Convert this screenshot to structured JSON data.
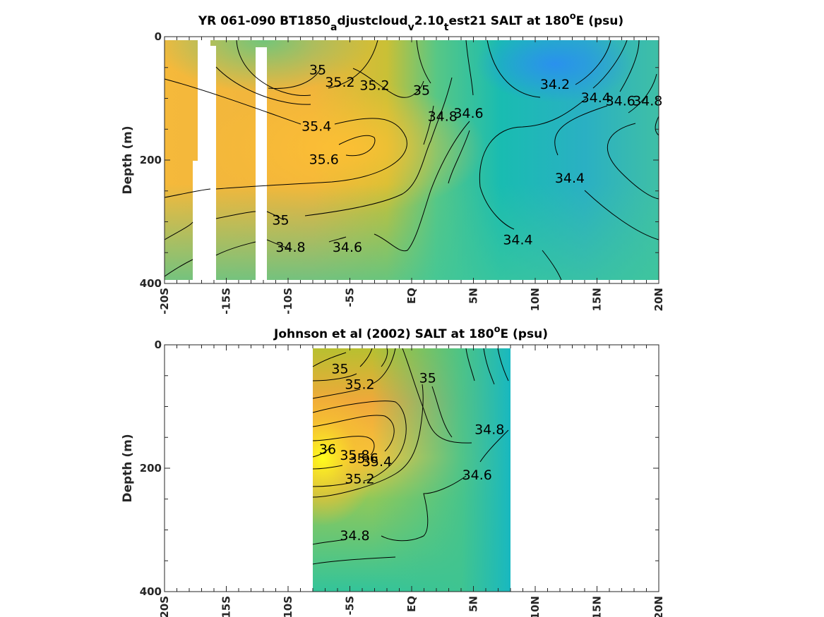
{
  "chart_data": [
    {
      "type": "heatmap",
      "title_parts": [
        "YR 061-090 BT1850",
        "a",
        "djustcloud",
        "v",
        "2.10",
        "t",
        "est21 SALT at 180",
        "o",
        "E (psu)"
      ],
      "ylabel": "Depth (m)",
      "xlim": [
        -20,
        20
      ],
      "ylim": [
        0,
        400
      ],
      "y_reversed": true,
      "x_ticks": [
        -20,
        -15,
        -10,
        -5,
        0,
        5,
        10,
        15,
        20
      ],
      "x_tick_labels": [
        "-20S",
        "-15S",
        "-10S",
        "-5S",
        "EQ",
        "5N",
        "10N",
        "15N",
        "20N"
      ],
      "y_ticks": [
        0,
        200,
        400
      ],
      "y_tick_labels": [
        "0",
        "200",
        "400"
      ],
      "contour_labels": [
        {
          "text": "35",
          "x": -7.6,
          "y": 55
        },
        {
          "text": "35.2",
          "x": -5.8,
          "y": 75
        },
        {
          "text": "35.2",
          "x": -3.0,
          "y": 80
        },
        {
          "text": "35",
          "x": 0.8,
          "y": 88
        },
        {
          "text": "34.8",
          "x": 2.5,
          "y": 130
        },
        {
          "text": "34.6",
          "x": 4.6,
          "y": 125
        },
        {
          "text": "34.2",
          "x": 11.6,
          "y": 78
        },
        {
          "text": "34.4",
          "x": 14.9,
          "y": 100
        },
        {
          "text": "34.6",
          "x": 16.9,
          "y": 105
        },
        {
          "text": "34.8",
          "x": 19.1,
          "y": 105
        },
        {
          "text": "35.4",
          "x": -7.7,
          "y": 146
        },
        {
          "text": "35.6",
          "x": -7.1,
          "y": 200
        },
        {
          "text": "34.4",
          "x": 12.8,
          "y": 230
        },
        {
          "text": "35",
          "x": -10.6,
          "y": 298
        },
        {
          "text": "34.8",
          "x": -9.8,
          "y": 342
        },
        {
          "text": "34.6",
          "x": -5.2,
          "y": 342
        },
        {
          "text": "34.4",
          "x": 8.6,
          "y": 330
        }
      ]
    },
    {
      "type": "heatmap",
      "title_parts": [
        "Johnson et al (2002) SALT at 180",
        "o",
        "E (psu)"
      ],
      "ylabel": "Depth (m)",
      "xlim": [
        -20,
        20
      ],
      "ylim": [
        0,
        400
      ],
      "y_reversed": true,
      "data_x_range": [
        -8,
        8
      ],
      "x_ticks": [
        -20,
        -15,
        -10,
        -5,
        0,
        5,
        10,
        15,
        20
      ],
      "x_tick_labels": [
        "-20S",
        "-15S",
        "-10S",
        "-5S",
        "EQ",
        "5N",
        "10N",
        "15N",
        "20N"
      ],
      "y_ticks": [
        0,
        200,
        400
      ],
      "y_tick_labels": [
        "0",
        "200",
        "400"
      ],
      "contour_labels": [
        {
          "text": "35",
          "x": -5.8,
          "y": 40
        },
        {
          "text": "35.2",
          "x": -4.2,
          "y": 65
        },
        {
          "text": "35",
          "x": 1.3,
          "y": 55
        },
        {
          "text": "34.8",
          "x": 6.3,
          "y": 138
        },
        {
          "text": "36",
          "x": -6.8,
          "y": 170
        },
        {
          "text": "35.8",
          "x": -4.6,
          "y": 180
        },
        {
          "text": "35.6",
          "x": -3.9,
          "y": 185
        },
        {
          "text": "35.4",
          "x": -2.8,
          "y": 190
        },
        {
          "text": "35.2",
          "x": -4.2,
          "y": 218
        },
        {
          "text": "34.6",
          "x": 5.3,
          "y": 212
        },
        {
          "text": "34.8",
          "x": -4.6,
          "y": 310
        }
      ]
    }
  ]
}
